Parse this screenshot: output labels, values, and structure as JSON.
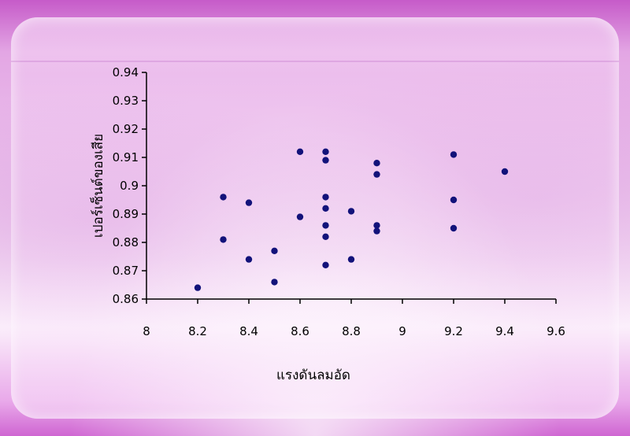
{
  "chart_data": {
    "type": "scatter",
    "title": "",
    "xlabel": "แรงดันลมอัด",
    "ylabel": "เปอร์เซ็นต์ของเสีย",
    "xlim": [
      8,
      9.6
    ],
    "ylim": [
      0.86,
      0.94
    ],
    "x_ticks": [
      "8",
      "8.2",
      "8.4",
      "8.6",
      "8.8",
      "9",
      "9.2",
      "9.4",
      "9.6"
    ],
    "y_ticks": [
      "0.86",
      "0.87",
      "0.88",
      "0.89",
      "0.9",
      "0.91",
      "0.92",
      "0.93",
      "0.94"
    ],
    "x_tick_values": [
      8,
      8.2,
      8.4,
      8.6,
      8.8,
      9,
      9.2,
      9.4,
      9.6
    ],
    "y_tick_values": [
      0.86,
      0.87,
      0.88,
      0.89,
      0.9,
      0.91,
      0.92,
      0.93,
      0.94
    ],
    "grid": false,
    "marker_color": "#12127a",
    "points": [
      {
        "x": 8.2,
        "y": 0.864
      },
      {
        "x": 8.3,
        "y": 0.896
      },
      {
        "x": 8.3,
        "y": 0.881
      },
      {
        "x": 8.4,
        "y": 0.894
      },
      {
        "x": 8.4,
        "y": 0.874
      },
      {
        "x": 8.5,
        "y": 0.877
      },
      {
        "x": 8.5,
        "y": 0.866
      },
      {
        "x": 8.6,
        "y": 0.912
      },
      {
        "x": 8.6,
        "y": 0.889
      },
      {
        "x": 8.7,
        "y": 0.912
      },
      {
        "x": 8.7,
        "y": 0.909
      },
      {
        "x": 8.7,
        "y": 0.896
      },
      {
        "x": 8.7,
        "y": 0.892
      },
      {
        "x": 8.7,
        "y": 0.886
      },
      {
        "x": 8.7,
        "y": 0.882
      },
      {
        "x": 8.7,
        "y": 0.872
      },
      {
        "x": 8.8,
        "y": 0.891
      },
      {
        "x": 8.8,
        "y": 0.874
      },
      {
        "x": 8.9,
        "y": 0.908
      },
      {
        "x": 8.9,
        "y": 0.904
      },
      {
        "x": 8.9,
        "y": 0.886
      },
      {
        "x": 8.9,
        "y": 0.884
      },
      {
        "x": 9.2,
        "y": 0.911
      },
      {
        "x": 9.2,
        "y": 0.895
      },
      {
        "x": 9.2,
        "y": 0.885
      },
      {
        "x": 9.4,
        "y": 0.905
      }
    ]
  }
}
